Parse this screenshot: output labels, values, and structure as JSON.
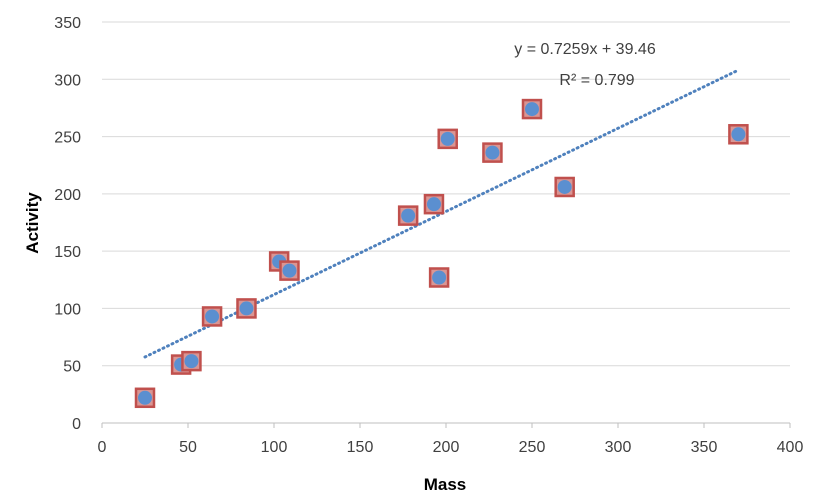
{
  "chart_data": {
    "type": "scatter",
    "title": "",
    "xlabel": "Mass",
    "ylabel": "Activity",
    "xlim": [
      0,
      400
    ],
    "ylim": [
      0,
      350
    ],
    "xticks": [
      0,
      50,
      100,
      150,
      200,
      250,
      300,
      350,
      400
    ],
    "yticks": [
      0,
      50,
      100,
      150,
      200,
      250,
      300,
      350
    ],
    "grid": "horizontal",
    "legend": "none",
    "series": [
      {
        "points": [
          {
            "x": 25,
            "y": 22
          },
          {
            "x": 46,
            "y": 51
          },
          {
            "x": 52,
            "y": 54
          },
          {
            "x": 64,
            "y": 93
          },
          {
            "x": 84,
            "y": 100
          },
          {
            "x": 103,
            "y": 141
          },
          {
            "x": 109,
            "y": 133
          },
          {
            "x": 178,
            "y": 181
          },
          {
            "x": 193,
            "y": 191
          },
          {
            "x": 196,
            "y": 127
          },
          {
            "x": 201,
            "y": 248
          },
          {
            "x": 227,
            "y": 236
          },
          {
            "x": 250,
            "y": 274
          },
          {
            "x": 269,
            "y": 206
          },
          {
            "x": 370,
            "y": 252
          }
        ]
      }
    ],
    "trendline": {
      "type": "linear",
      "slope": 0.7259,
      "intercept": 39.46,
      "x_range": [
        25,
        370
      ],
      "equation_label": "y = 0.7259x + 39.46",
      "r2_label": "R² = 0.799",
      "style": "dotted"
    },
    "colors": {
      "marker_fill": "#5b8fd0",
      "marker_border": "#c0504d",
      "marker_square_fill": "#d99694",
      "trendline": "#4f81bd",
      "grid": "#d9d9d9",
      "axis": "#bfbfbf"
    }
  }
}
